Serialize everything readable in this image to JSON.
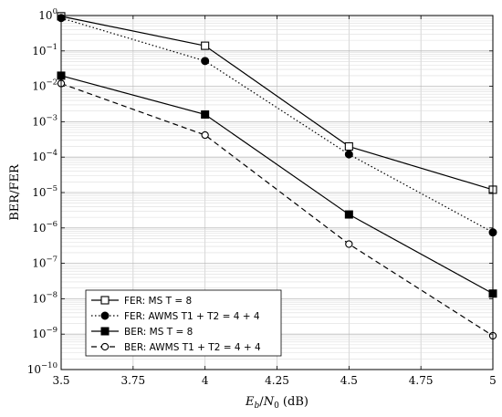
{
  "chart_data": {
    "type": "line",
    "xlabel": "E_b/N_0 (dB)",
    "ylabel": "BER/FER",
    "xlim": [
      3.5,
      5
    ],
    "ylim_log10": [
      -10,
      0
    ],
    "y_scale": "log",
    "x_ticks": [
      "3.5",
      "3.75",
      "4",
      "4.25",
      "4.5",
      "4.75",
      "5"
    ],
    "y_ticks": [
      "10^-10",
      "10^-9",
      "10^-8",
      "10^-7",
      "10^-6",
      "10^-5",
      "10^-4",
      "10^-3",
      "10^-2",
      "10^-1",
      "10^0"
    ],
    "grid": true,
    "legend_position": "bottom-left",
    "series": [
      {
        "name": "FER: MS T = 8",
        "marker": "open-square",
        "line": "solid",
        "x": [
          3.5,
          4,
          4.5,
          5
        ],
        "y": [
          0.95,
          0.14,
          0.0002,
          1.2e-05
        ]
      },
      {
        "name": "FER: AWMS T1 + T2 = 4 + 4",
        "marker": "filled-circle",
        "line": "dotted",
        "x": [
          3.5,
          4,
          4.5,
          5
        ],
        "y": [
          0.85,
          0.052,
          0.00012,
          7.5e-07
        ]
      },
      {
        "name": "BER: MS T = 8",
        "marker": "filled-square",
        "line": "solid",
        "x": [
          3.5,
          4,
          4.5,
          5
        ],
        "y": [
          0.02,
          0.0016,
          2.4e-06,
          1.4e-08
        ]
      },
      {
        "name": "BER: AWMS T1 + T2 = 4 + 4",
        "marker": "open-circle",
        "line": "dashed",
        "x": [
          3.5,
          4,
          4.5,
          5
        ],
        "y": [
          0.012,
          0.00042,
          3.5e-07,
          9e-10
        ]
      }
    ]
  }
}
